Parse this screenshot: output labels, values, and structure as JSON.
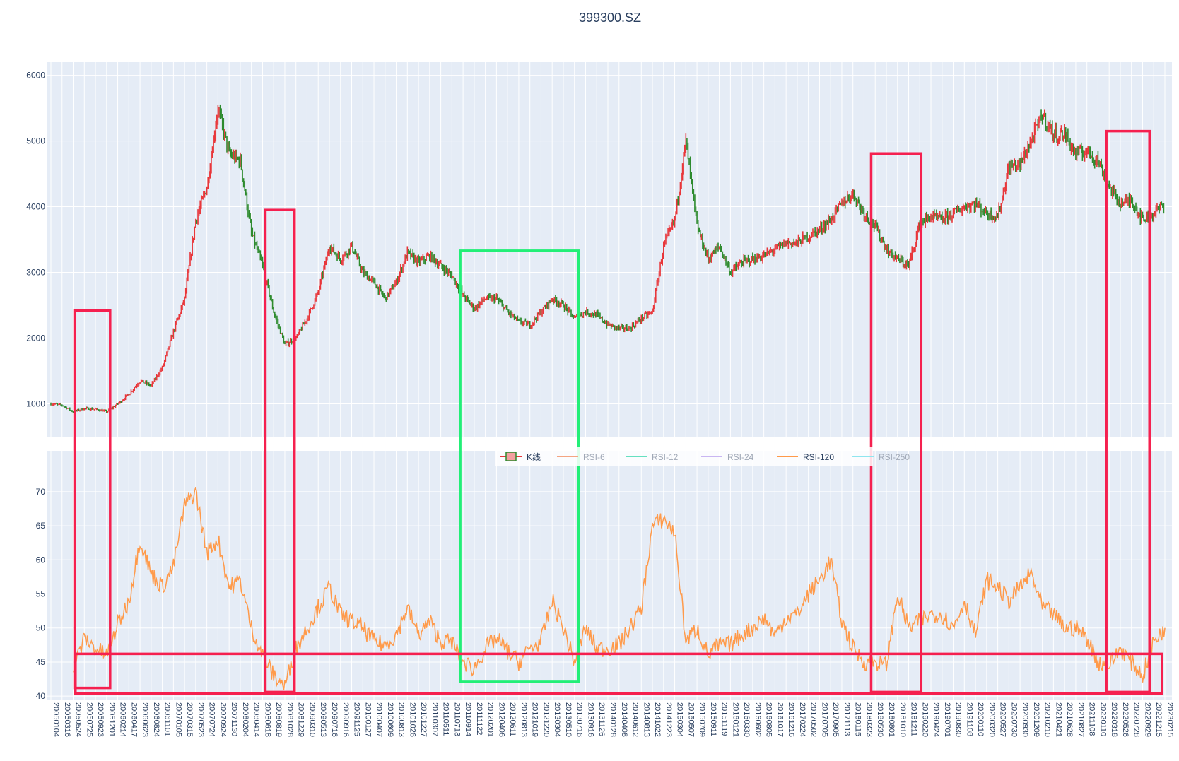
{
  "colors": {
    "plot_bg": "#e5ecf6",
    "grid": "#ffffff",
    "k_up": "#e8363a",
    "k_down": "#2e8b2e",
    "rsi6": "#f4a582",
    "rsi12": "#66e0c0",
    "rsi24": "#c9b6f2",
    "rsi120": "#ff9a4a",
    "rsi250": "#8fe6ef",
    "box_red": "#f5204f",
    "box_green": "#22ef77",
    "text": "#2a3f5f"
  },
  "chart_data": {
    "type": "line",
    "title": "399300.SZ",
    "panels": [
      {
        "name": "price",
        "ylim": [
          500,
          6200
        ],
        "yticks": [
          1000,
          2000,
          3000,
          4000,
          5000,
          6000
        ]
      },
      {
        "name": "rsi",
        "ylim": [
          39.5,
          76
        ],
        "yticks": [
          40,
          45,
          50,
          55,
          60,
          65,
          70
        ]
      }
    ],
    "x_tick_labels": [
      "20050104",
      "20050316",
      "20050524",
      "20050725",
      "20050923",
      "20051201",
      "20060214",
      "20060417",
      "20060623",
      "20060824",
      "20061101",
      "20070105",
      "20070315",
      "20070523",
      "20070724",
      "20070924",
      "20071130",
      "20080204",
      "20080414",
      "20080618",
      "20080819",
      "20081028",
      "20081229",
      "20090310",
      "20090513",
      "20090716",
      "20090916",
      "20091125",
      "20100127",
      "20100407",
      "20100609",
      "20100813",
      "20101026",
      "20101227",
      "20110307",
      "20110511",
      "20110713",
      "20110914",
      "20111122",
      "20120201",
      "20120406",
      "20120611",
      "20120813",
      "20121019",
      "20121220",
      "20130304",
      "20130510",
      "20130716",
      "20130916",
      "20131126",
      "20140128",
      "20140408",
      "20140612",
      "20140813",
      "20141022",
      "20141223",
      "20150304",
      "20150507",
      "20150709",
      "20150911",
      "20151119",
      "20160121",
      "20160330",
      "20160602",
      "20160805",
      "20161017",
      "20161216",
      "20170224",
      "20170502",
      "20170705",
      "20170905",
      "20171113",
      "20180115",
      "20180323",
      "20180530",
      "20180801",
      "20181010",
      "20181211",
      "20190220",
      "20190424",
      "20190701",
      "20190830",
      "20191108",
      "20200110",
      "20200320",
      "20200527",
      "20200730",
      "20200930",
      "20201209",
      "20210210",
      "20210421",
      "20210628",
      "20210827",
      "20211108",
      "20220110",
      "20220318",
      "20220526",
      "20220728",
      "20220929",
      "20221215",
      "20230215"
    ],
    "legend": [
      {
        "name": "K线",
        "key": "k"
      },
      {
        "name": "RSI-6",
        "key": "rsi6"
      },
      {
        "name": "RSI-12",
        "key": "rsi12"
      },
      {
        "name": "RSI-24",
        "key": "rsi24"
      },
      {
        "name": "RSI-120",
        "key": "rsi120"
      },
      {
        "name": "RSI-250",
        "key": "rsi250"
      }
    ],
    "series": [
      {
        "name": "K线",
        "type": "candlestick",
        "x": [
          "20050104",
          "20050316",
          "20050524",
          "20050725",
          "20050923",
          "20051201",
          "20060214",
          "20060417",
          "20060623",
          "20060824",
          "20061101",
          "20070105",
          "20070315",
          "20070523",
          "20070724",
          "20070924",
          "20071130",
          "20080204",
          "20080414",
          "20080618",
          "20080819",
          "20081028",
          "20081229",
          "20090310",
          "20090513",
          "20090716",
          "20090916",
          "20091125",
          "20100127",
          "20100407",
          "20100609",
          "20100813",
          "20101026",
          "20101227",
          "20110307",
          "20110511",
          "20110713",
          "20110914",
          "20111122",
          "20120201",
          "20120406",
          "20120611",
          "20120813",
          "20121019",
          "20121220",
          "20130304",
          "20130510",
          "20130716",
          "20130916",
          "20131126",
          "20140128",
          "20140408",
          "20140612",
          "20140813",
          "20141022",
          "20141223",
          "20150304",
          "20150507",
          "20150709",
          "20150911",
          "20151119",
          "20160121",
          "20160330",
          "20160602",
          "20160805",
          "20161017",
          "20161216",
          "20170224",
          "20170502",
          "20170705",
          "20170905",
          "20171113",
          "20180115",
          "20180323",
          "20180530",
          "20180801",
          "20181010",
          "20181211",
          "20190220",
          "20190424",
          "20190701",
          "20190830",
          "20191108",
          "20200110",
          "20200320",
          "20200527",
          "20200730",
          "20200930",
          "20201209",
          "20210210",
          "20210421",
          "20210628",
          "20210827",
          "20211108",
          "20220110",
          "20220318",
          "20220526",
          "20220728",
          "20220929",
          "20221215",
          "20230215"
        ],
        "close": [
          1000,
          980,
          880,
          930,
          920,
          880,
          1000,
          1150,
          1350,
          1280,
          1550,
          2100,
          2600,
          3800,
          4300,
          5500,
          4800,
          4700,
          3600,
          3100,
          2400,
          1900,
          2000,
          2300,
          2700,
          3400,
          3200,
          3400,
          3000,
          2850,
          2600,
          2850,
          3300,
          3150,
          3250,
          3100,
          2950,
          2650,
          2450,
          2600,
          2600,
          2400,
          2250,
          2200,
          2400,
          2600,
          2500,
          2300,
          2400,
          2350,
          2200,
          2150,
          2150,
          2300,
          2400,
          3400,
          3800,
          5000,
          3700,
          3200,
          3400,
          3000,
          3150,
          3200,
          3250,
          3350,
          3450,
          3450,
          3550,
          3650,
          3800,
          4050,
          4200,
          3900,
          3700,
          3350,
          3200,
          3100,
          3750,
          3850,
          3800,
          3900,
          4000,
          4050,
          3900,
          3850,
          4600,
          4650,
          5000,
          5400,
          5100,
          5100,
          4800,
          4850,
          4700,
          4300,
          4050,
          4100,
          3800,
          3900,
          4050
        ]
      },
      {
        "name": "RSI-120",
        "x": [
          "20050524",
          "20050725",
          "20050923",
          "20051201",
          "20060214",
          "20060417",
          "20060623",
          "20060824",
          "20061101",
          "20070105",
          "20070315",
          "20070523",
          "20070724",
          "20070924",
          "20071130",
          "20080204",
          "20080414",
          "20080618",
          "20080819",
          "20081028",
          "20081229",
          "20090310",
          "20090513",
          "20090716",
          "20090916",
          "20091125",
          "20100127",
          "20100407",
          "20100609",
          "20100813",
          "20101026",
          "20101227",
          "20110307",
          "20110511",
          "20110713",
          "20110914",
          "20111122",
          "20120201",
          "20120406",
          "20120611",
          "20120813",
          "20121019",
          "20121220",
          "20130304",
          "20130510",
          "20130716",
          "20130916",
          "20131126",
          "20140128",
          "20140408",
          "20140612",
          "20140813",
          "20141022",
          "20141223",
          "20150304",
          "20150507",
          "20150709",
          "20150911",
          "20151119",
          "20160121",
          "20160330",
          "20160602",
          "20160805",
          "20161017",
          "20161216",
          "20170224",
          "20170502",
          "20170705",
          "20170905",
          "20171113",
          "20180115",
          "20180323",
          "20180530",
          "20180801",
          "20181010",
          "20181211",
          "20190220",
          "20190424",
          "20190701",
          "20190830",
          "20191108",
          "20200110",
          "20200320",
          "20200527",
          "20200730",
          "20200930",
          "20201209",
          "20210210",
          "20210421",
          "20210628",
          "20210827",
          "20211108",
          "20220110",
          "20220318",
          "20220526",
          "20220728",
          "20220929",
          "20221215",
          "20230215"
        ],
        "values": [
          44,
          48.5,
          47,
          46,
          50.5,
          54,
          63,
          58,
          56,
          59,
          68,
          70,
          61,
          63,
          56,
          57,
          50,
          46,
          43,
          41.5,
          47,
          50,
          53,
          56,
          52,
          51,
          50,
          48,
          47.5,
          49,
          53,
          49,
          51,
          48,
          48,
          45,
          44,
          47,
          48.5,
          46.5,
          45,
          47,
          48,
          54,
          50,
          45,
          50,
          47,
          47,
          47.5,
          50,
          53,
          65,
          66,
          64,
          48,
          50,
          46,
          47.5,
          47.5,
          49,
          50,
          51.5,
          49,
          51.5,
          52,
          55,
          57,
          60,
          51,
          47,
          45,
          45,
          44.5,
          55,
          50,
          51,
          52,
          52,
          50,
          54,
          49,
          57,
          56,
          54,
          56,
          58,
          53,
          52,
          50,
          50,
          48.5,
          45,
          44.5,
          47,
          45,
          43,
          48,
          50
        ]
      }
    ],
    "annotations": [
      {
        "type": "box",
        "color": "red",
        "x0": "20050524",
        "x1": "20051201",
        "y0": 800,
        "y1": 2420,
        "note": "price panel, extends into RSI panel to 41.2"
      },
      {
        "type": "box",
        "color": "red",
        "x0": "20080618",
        "x1": "20081229",
        "y0": 2400,
        "y1": 3950
      },
      {
        "type": "box",
        "color": "green",
        "x0": "20110914",
        "x1": "20130716",
        "y0": 2400,
        "y1": 3330
      },
      {
        "type": "box",
        "color": "red",
        "x0": "20180323",
        "x1": "20190424",
        "y0": 3100,
        "y1": 4800
      },
      {
        "type": "box",
        "color": "red",
        "x0": "20220318",
        "x1": "20221215",
        "y0": 3700,
        "y1": 5150
      },
      {
        "type": "box",
        "color": "red",
        "note": "horizontal band across RSI panel",
        "y0": 40.5,
        "y1": 46
      }
    ]
  }
}
